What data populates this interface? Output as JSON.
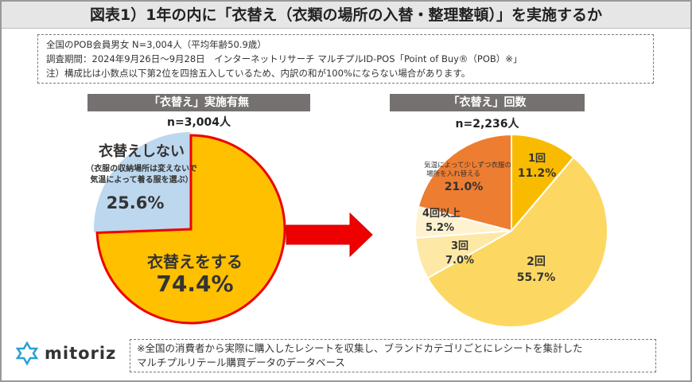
{
  "title": "図表1）1年の内に「衣替え（衣類の場所の入替・整理整頓）」を実施するか",
  "notes": [
    "全国のPOB会員男女 N=3,004人（平均年齢50.9歳）",
    "調査期間：2024年9月26日～9月28日　インターネットリサーチ マルチプルID-POS「Point of Buy®（POB）※」",
    "注）構成比は小数点以下第2位を四捨五入しているため、内訳の和が100%にならない場合があります。"
  ],
  "footer": [
    "※全国の消費者から実際に購入したレシートを収集し、ブランドカテゴリごとにレシートを集計した",
    "マルチプルリテール購買データのデータベース"
  ],
  "logo": "mitoriz",
  "chart_data": [
    {
      "type": "pie",
      "title": "「衣替え」実施有無",
      "n_label": "n=3,004人",
      "slices": [
        {
          "label": "衣替えをする",
          "value": 74.4,
          "value_label": "74.4%",
          "color": "#ffc000"
        },
        {
          "label": "衣替えしない",
          "sublabel": [
            "（衣服の収納場所は変えないで",
            "気温によって着る服を選ぶ）"
          ],
          "value": 25.6,
          "value_label": "25.6%",
          "color": "#bdd7ee"
        }
      ]
    },
    {
      "type": "pie",
      "title": "「衣替え」回数",
      "n_label": "n=2,236人",
      "slices": [
        {
          "label": "1回",
          "value": 11.2,
          "value_label": "11.2%",
          "color": "#f8bb00"
        },
        {
          "label": "2回",
          "value": 55.7,
          "value_label": "55.7%",
          "color": "#fcd862"
        },
        {
          "label": "3回",
          "value": 7.0,
          "value_label": "7.0%",
          "color": "#fde8a6"
        },
        {
          "label": "4回以上",
          "value": 5.2,
          "value_label": "5.2%",
          "color": "#fef2d0"
        },
        {
          "label": "気温によって少しずつ衣服の場所を入れ替える",
          "value": 21.0,
          "value_label": "21.0%",
          "color": "#ed7d31"
        }
      ]
    }
  ]
}
